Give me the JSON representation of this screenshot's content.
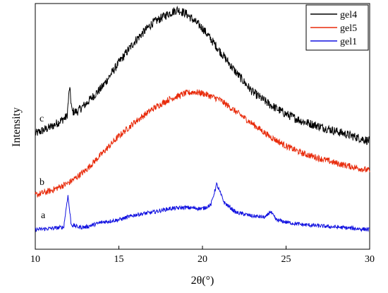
{
  "chart_data": {
    "type": "line",
    "title": "",
    "xlabel": "2θ(°)",
    "ylabel": "Intensity",
    "xlim": [
      10,
      30
    ],
    "xticks": [
      10,
      15,
      20,
      25,
      30
    ],
    "xtick_labels": [
      "10",
      "15",
      "20",
      "25",
      "30"
    ],
    "ylim": [
      0,
      1
    ],
    "yticks_shown": false,
    "grid": false,
    "legend_position": "top-right",
    "legend": [
      "gel4",
      "gel5",
      "gel1"
    ],
    "curve_labels": [
      "c",
      "b",
      "a"
    ],
    "series": [
      {
        "name": "gel4",
        "label": "c",
        "color": "#000000",
        "noise": 0.018,
        "points": [
          [
            10,
            0.47
          ],
          [
            11,
            0.5
          ],
          [
            11.9,
            0.54
          ],
          [
            12.05,
            0.66
          ],
          [
            12.2,
            0.56
          ],
          [
            12.5,
            0.56
          ],
          [
            13,
            0.59
          ],
          [
            14,
            0.66
          ],
          [
            15,
            0.76
          ],
          [
            16,
            0.85
          ],
          [
            17,
            0.92
          ],
          [
            18,
            0.96
          ],
          [
            18.5,
            0.975
          ],
          [
            19,
            0.96
          ],
          [
            20,
            0.9
          ],
          [
            21,
            0.81
          ],
          [
            22,
            0.72
          ],
          [
            23,
            0.64
          ],
          [
            24,
            0.59
          ],
          [
            25,
            0.55
          ],
          [
            26,
            0.52
          ],
          [
            27,
            0.5
          ],
          [
            28,
            0.48
          ],
          [
            29,
            0.46
          ],
          [
            30,
            0.44
          ]
        ]
      },
      {
        "name": "gel5",
        "label": "b",
        "color": "#e82a0a",
        "noise": 0.013,
        "points": [
          [
            10,
            0.22
          ],
          [
            11,
            0.24
          ],
          [
            12,
            0.27
          ],
          [
            13,
            0.32
          ],
          [
            14,
            0.39
          ],
          [
            15,
            0.46
          ],
          [
            16,
            0.52
          ],
          [
            17,
            0.57
          ],
          [
            18,
            0.61
          ],
          [
            19,
            0.635
          ],
          [
            19.5,
            0.64
          ],
          [
            20,
            0.635
          ],
          [
            21,
            0.61
          ],
          [
            22,
            0.56
          ],
          [
            23,
            0.51
          ],
          [
            24,
            0.46
          ],
          [
            25,
            0.42
          ],
          [
            26,
            0.39
          ],
          [
            27,
            0.37
          ],
          [
            28,
            0.35
          ],
          [
            29,
            0.335
          ],
          [
            30,
            0.32
          ]
        ]
      },
      {
        "name": "gel1",
        "label": "a",
        "color": "#1010e0",
        "noise": 0.008,
        "points": [
          [
            10,
            0.08
          ],
          [
            11,
            0.085
          ],
          [
            11.7,
            0.09
          ],
          [
            11.95,
            0.22
          ],
          [
            12.15,
            0.1
          ],
          [
            12.6,
            0.09
          ],
          [
            13,
            0.09
          ],
          [
            14,
            0.11
          ],
          [
            15,
            0.12
          ],
          [
            16,
            0.14
          ],
          [
            17,
            0.15
          ],
          [
            18,
            0.165
          ],
          [
            19,
            0.17
          ],
          [
            20,
            0.165
          ],
          [
            20.5,
            0.18
          ],
          [
            20.85,
            0.265
          ],
          [
            21.3,
            0.19
          ],
          [
            22,
            0.15
          ],
          [
            23,
            0.135
          ],
          [
            23.8,
            0.13
          ],
          [
            24.05,
            0.155
          ],
          [
            24.4,
            0.12
          ],
          [
            25,
            0.11
          ],
          [
            26,
            0.1
          ],
          [
            27,
            0.095
          ],
          [
            28,
            0.09
          ],
          [
            29,
            0.085
          ],
          [
            30,
            0.08
          ]
        ]
      }
    ]
  }
}
